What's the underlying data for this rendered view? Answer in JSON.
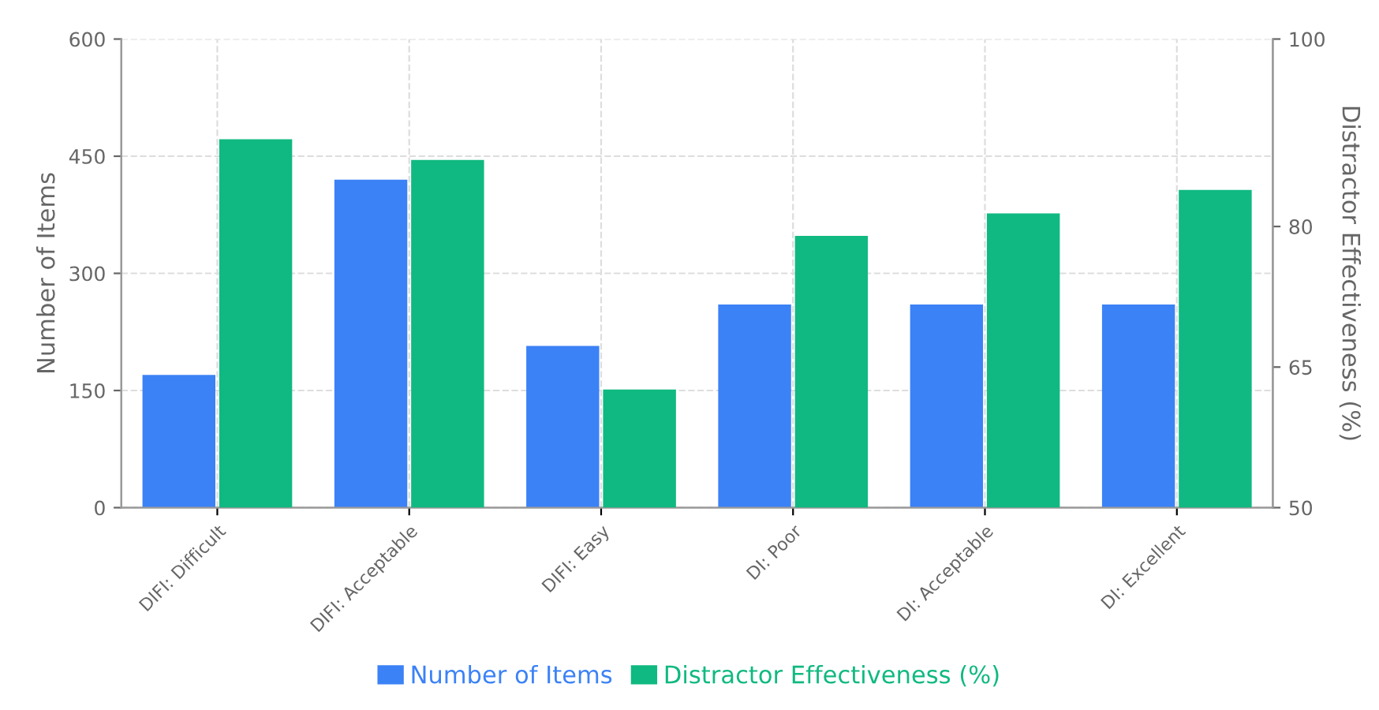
{
  "chart_data": {
    "type": "bar",
    "categories": [
      "DIFI: Difficult",
      "DIFI: Acceptable",
      "DIFI: Easy",
      "DI: Poor",
      "DI: Acceptable",
      "DI: Excellent"
    ],
    "series": [
      {
        "name": "Number of Items",
        "color": "#3b82f6",
        "values": [
          170,
          420,
          207,
          260,
          260,
          260
        ]
      },
      {
        "name": "Distractor Effectiveness (%)",
        "color": "#10b981",
        "axis": "y2",
        "values": [
          89.3,
          87.1,
          62.6,
          79.0,
          81.4,
          83.9
        ]
      }
    ],
    "ylabel": "Number of Items",
    "y2label": "Distractor Effectiveness (%)",
    "ylim": [
      0,
      600
    ],
    "yticks": [
      0,
      150,
      300,
      450,
      600
    ],
    "y2lim": [
      50,
      100
    ],
    "y2ticks": [
      50,
      65,
      80,
      100
    ],
    "grid": true,
    "legend": "bottom"
  }
}
